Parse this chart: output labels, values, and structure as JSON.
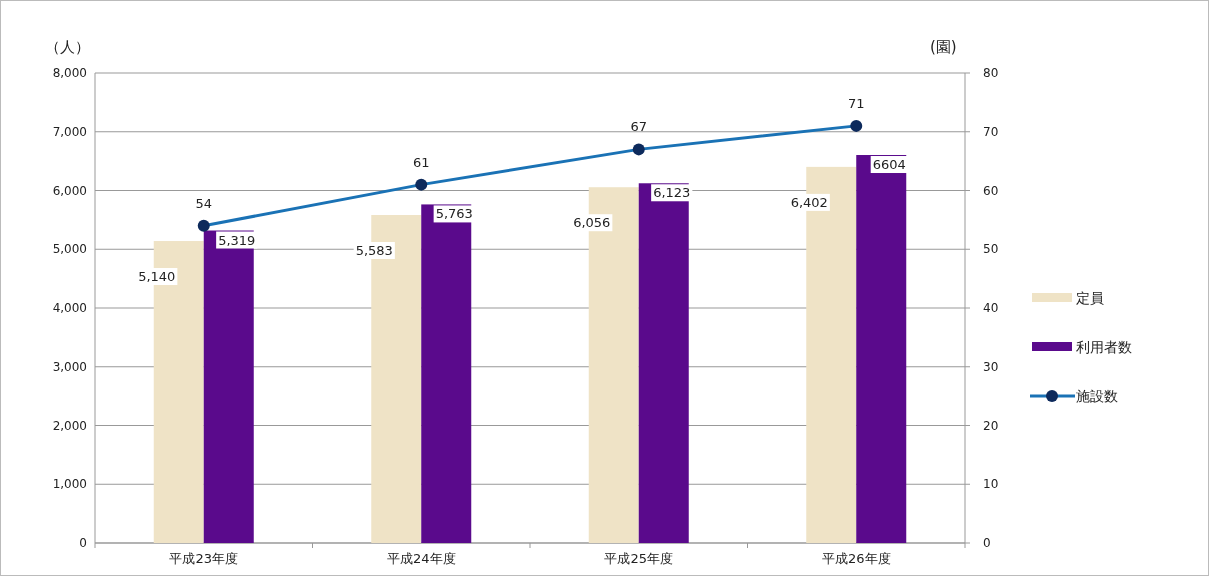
{
  "chart_data": {
    "type": "bar",
    "categories": [
      "平成23年度",
      "平成24年度",
      "平成25年度",
      "平成26年度"
    ],
    "ylabel": "（人）",
    "y2label": "(園)",
    "ylim": [
      0,
      8000
    ],
    "yticks": [
      0,
      {
        "value": 1000,
        "label": "1,000"
      },
      {
        "value": 2000,
        "label": "2,000"
      },
      {
        "value": 3000,
        "label": "3,000"
      },
      {
        "value": 4000,
        "label": "4,000"
      },
      {
        "value": 5000,
        "label": "5,000"
      },
      {
        "value": 6000,
        "label": "6,000"
      },
      {
        "value": 7000,
        "label": "7,000"
      },
      {
        "value": 8000,
        "label": "8,000"
      }
    ],
    "y2lim": [
      0,
      80
    ],
    "y2ticks": [
      0,
      10,
      20,
      30,
      40,
      50,
      60,
      70,
      80
    ],
    "grid": "y",
    "legend": "right",
    "series": [
      {
        "name": "定員",
        "color": "#efe3c6",
        "values": [
          5140,
          5583,
          6056,
          6402
        ],
        "value_labels": [
          "5,140",
          "5,583",
          "6,056",
          "6,402"
        ]
      },
      {
        "name": "利用者数",
        "color": "#5a0a8c",
        "values": [
          5319,
          5763,
          6123,
          6604
        ],
        "value_labels": [
          "5,319",
          "5,763",
          "6,123",
          "6604"
        ]
      },
      {
        "name": "施設数",
        "type": "line",
        "axis": "y2",
        "color": "#1a72b5",
        "marker": "circle",
        "values": [
          54,
          61,
          67,
          71
        ],
        "value_labels": [
          "54",
          "61",
          "67",
          "71"
        ]
      }
    ]
  }
}
